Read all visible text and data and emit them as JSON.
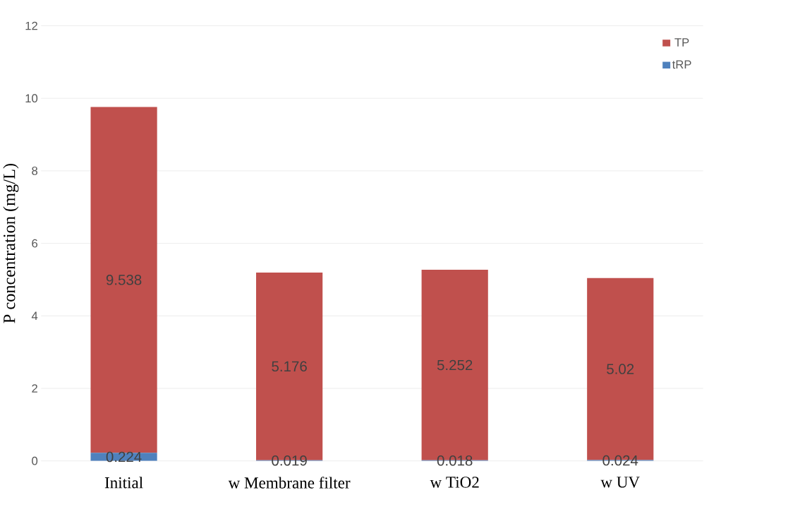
{
  "chart_data": {
    "type": "bar",
    "stacked": true,
    "ylabel": "P concentration (mg/L)",
    "categories": [
      "Initial",
      "w Membrane filter",
      "w TiO2",
      "w UV"
    ],
    "series": [
      {
        "name": "tRP",
        "color": "#4f81bd",
        "values": [
          0.224,
          0.019,
          0.018,
          0.024
        ]
      },
      {
        "name": "TP",
        "color": "#c0504d",
        "values": [
          9.538,
          5.176,
          5.252,
          5.02
        ]
      }
    ],
    "ylim": [
      0,
      12
    ],
    "yticks": [
      0,
      2,
      4,
      6,
      8,
      10,
      12
    ],
    "grid": "y",
    "legend": "top right",
    "data_labels": true
  }
}
